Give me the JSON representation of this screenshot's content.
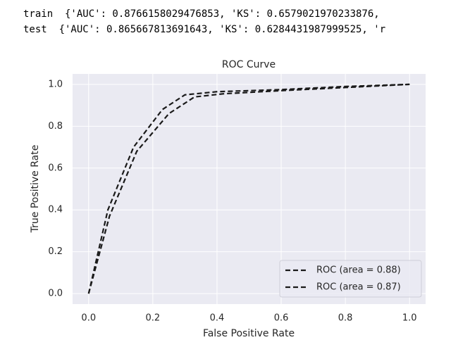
{
  "output_lines": [
    "train  {'AUC': 0.8766158029476853, 'KS': 0.6579021970233876, ",
    "test  {'AUC': 0.865667813691643, 'KS': 0.6284431987999525, 'r"
  ],
  "chart_data": {
    "type": "line",
    "title": "ROC Curve",
    "x_label": "False Positive Rate",
    "y_label": "True Positive Rate",
    "series": [
      {
        "name": "ROC (area = 0.88)",
        "color": "#1a1a1a",
        "dash": true,
        "x": [
          0,
          0.06,
          0.14,
          0.23,
          0.3,
          0.4,
          0.6,
          0.8,
          1
        ],
        "values": [
          0,
          0.4,
          0.7,
          0.88,
          0.95,
          0.965,
          0.975,
          0.99,
          1
        ]
      },
      {
        "name": "ROC (area = 0.87)",
        "color": "#1a1a1a",
        "dash": true,
        "x": [
          0,
          0.065,
          0.15,
          0.25,
          0.33,
          0.42,
          0.6,
          0.8,
          1
        ],
        "values": [
          0,
          0.37,
          0.68,
          0.86,
          0.94,
          0.955,
          0.97,
          0.985,
          1
        ]
      }
    ],
    "xlim": [
      -0.05,
      1.05
    ],
    "ylim": [
      -0.05,
      1.05
    ],
    "xticks": [
      {
        "value": 0,
        "label": "0.0"
      },
      0.2,
      0.4,
      0.6,
      0.8,
      {
        "value": 1,
        "label": "1.0"
      }
    ],
    "yticks": [
      {
        "value": 0,
        "label": "0.0"
      },
      0.2,
      0.4,
      0.6,
      0.8,
      {
        "value": 1,
        "label": "1.0"
      }
    ],
    "grid": true,
    "legend": "lower right"
  }
}
